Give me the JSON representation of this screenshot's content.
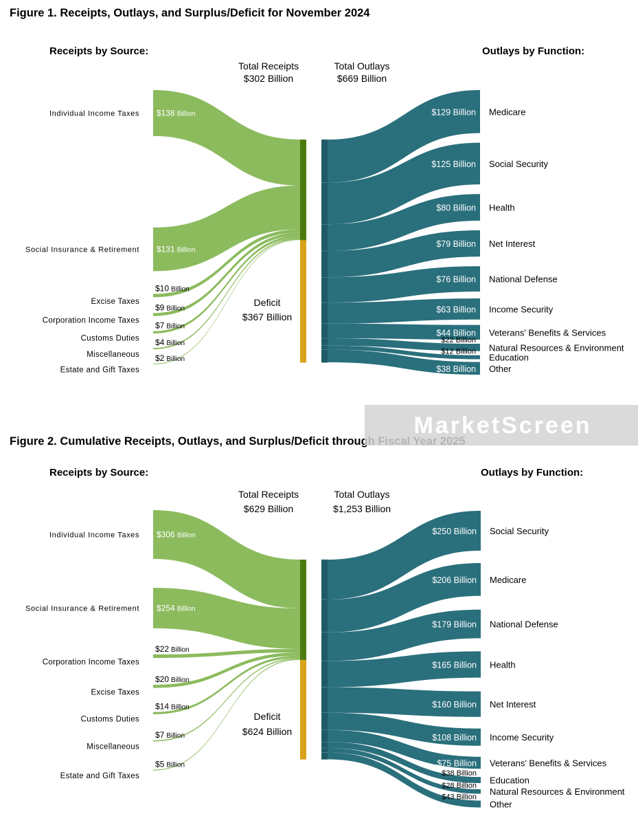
{
  "watermark": "MarketScreen",
  "chart_data": [
    {
      "type": "sankey",
      "title": "Figure 1. Receipts, Outlays, and Surplus/Deficit for November 2024",
      "receipts_heading": "Receipts by Source:",
      "outlays_heading": "Outlays by Function:",
      "total_receipts_label": [
        "Total Receipts",
        "$302 Billion"
      ],
      "total_outlays_label": [
        "Total Outlays",
        "$669 Billion"
      ],
      "deficit_label": [
        "Deficit",
        "$367 Billion"
      ],
      "total_receipts": 302,
      "total_outlays": 669,
      "deficit": 367,
      "receipts": [
        {
          "name": "Individual Income Taxes",
          "value": 138,
          "label_amount": "$138",
          "label_unit": "Billion"
        },
        {
          "name": "Social Insurance & Retirement",
          "value": 131,
          "label_amount": "$131",
          "label_unit": "Billion"
        },
        {
          "name": "Excise Taxes",
          "value": 10,
          "label_amount": "$10",
          "label_unit": "Billion"
        },
        {
          "name": "Corporation Income Taxes",
          "value": 9,
          "label_amount": "$9",
          "label_unit": "Billion"
        },
        {
          "name": "Customs Duties",
          "value": 7,
          "label_amount": "$7",
          "label_unit": "Billion"
        },
        {
          "name": "Miscellaneous",
          "value": 4,
          "label_amount": "$4",
          "label_unit": "Billion"
        },
        {
          "name": "Estate and Gift Taxes",
          "value": 2,
          "label_amount": "$2",
          "label_unit": "Billion"
        }
      ],
      "outlays": [
        {
          "name": "Medicare",
          "value": 129,
          "label": "$129 Billion"
        },
        {
          "name": "Social Security",
          "value": 125,
          "label": "$125 Billion"
        },
        {
          "name": "Health",
          "value": 80,
          "label": "$80 Billion"
        },
        {
          "name": "Net Interest",
          "value": 79,
          "label": "$79 Billion"
        },
        {
          "name": "National Defense",
          "value": 76,
          "label": "$76 Billion"
        },
        {
          "name": "Income Security",
          "value": 63,
          "label": "$63 Billion"
        },
        {
          "name": "Veterans' Benefits & Services",
          "value": 44,
          "label": "$44 Billion"
        },
        {
          "name": "Natural Resources & Environment",
          "value": 22,
          "label": "$22 Billion"
        },
        {
          "name": "Education",
          "value": 12,
          "label": "$12 Billion"
        },
        {
          "name": "Other",
          "value": 38,
          "label": "$38 Billion"
        }
      ]
    },
    {
      "type": "sankey",
      "title": "Figure 2. Cumulative Receipts, Outlays, and Surplus/Deficit through Fiscal Year 2025",
      "receipts_heading": "Receipts by Source:",
      "outlays_heading": "Outlays by Function:",
      "total_receipts_label": [
        "Total Receipts",
        "$629 Billion"
      ],
      "total_outlays_label": [
        "Total Outlays",
        "$1,253 Billion"
      ],
      "deficit_label": [
        "Deficit",
        "$624 Billion"
      ],
      "total_receipts": 629,
      "total_outlays": 1253,
      "deficit": 624,
      "receipts": [
        {
          "name": "Individual Income Taxes",
          "value": 306,
          "label_amount": "$306",
          "label_unit": "Billion"
        },
        {
          "name": "Social Insurance & Retirement",
          "value": 254,
          "label_amount": "$254",
          "label_unit": "Billion"
        },
        {
          "name": "Corporation Income Taxes",
          "value": 22,
          "label_amount": "$22",
          "label_unit": "Billion"
        },
        {
          "name": "Excise Taxes",
          "value": 20,
          "label_amount": "$20",
          "label_unit": "Billion"
        },
        {
          "name": "Customs Duties",
          "value": 14,
          "label_amount": "$14",
          "label_unit": "Billion"
        },
        {
          "name": "Miscellaneous",
          "value": 7,
          "label_amount": "$7",
          "label_unit": "Billion"
        },
        {
          "name": "Estate and Gift Taxes",
          "value": 5,
          "label_amount": "$5",
          "label_unit": "Billion"
        }
      ],
      "outlays": [
        {
          "name": "Social Security",
          "value": 250,
          "label": "$250 Billion"
        },
        {
          "name": "Medicare",
          "value": 206,
          "label": "$206 Billion"
        },
        {
          "name": "National Defense",
          "value": 179,
          "label": "$179 Billion"
        },
        {
          "name": "Health",
          "value": 165,
          "label": "$165 Billion"
        },
        {
          "name": "Net Interest",
          "value": 160,
          "label": "$160 Billion"
        },
        {
          "name": "Income Security",
          "value": 108,
          "label": "$108 Billion"
        },
        {
          "name": "Veterans' Benefits & Services",
          "value": 75,
          "label": "$75 Billion"
        },
        {
          "name": "Education",
          "value": 38,
          "label": "$38 Billion"
        },
        {
          "name": "Natural Resources & Environment",
          "value": 28,
          "label": "$28 Billion"
        },
        {
          "name": "Other",
          "value": 43,
          "label": "$43 Billion"
        }
      ]
    }
  ],
  "colors": {
    "receipt_flow": "#8cbb5e",
    "receipt_bar": "#4d7a0e",
    "deficit_bar": "#d8a31a",
    "outlay_flow": "#2a6f7c",
    "outlay_bar": "#1f5a66",
    "text": "#000000",
    "watermark_bg": "#d3d3d3",
    "watermark_text": "#ffffff"
  }
}
